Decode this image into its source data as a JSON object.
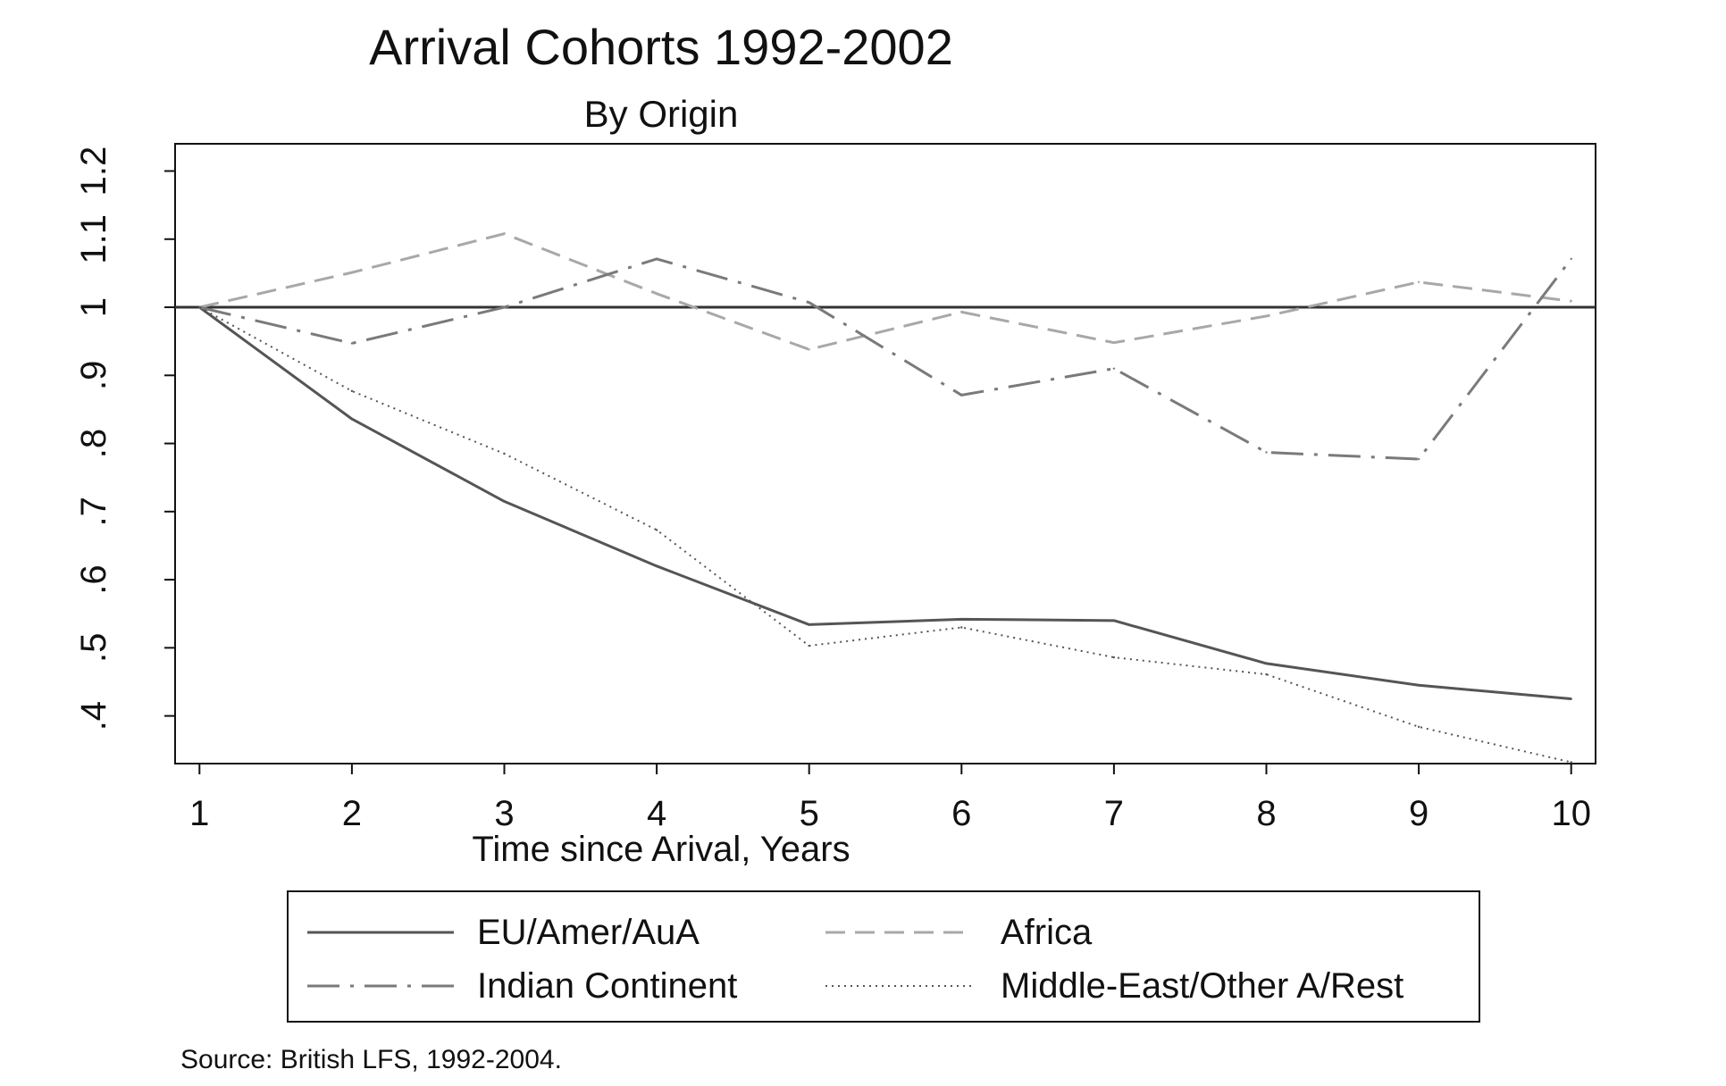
{
  "chart_data": {
    "type": "line",
    "title": "Arrival Cohorts 1992-2002",
    "subtitle": "By Origin",
    "xlabel": "Time since Arival, Years",
    "ylabel": "",
    "x": [
      1,
      2,
      3,
      4,
      5,
      6,
      7,
      8,
      9,
      10
    ],
    "x_ticks": [
      "1",
      "2",
      "3",
      "4",
      "5",
      "6",
      "7",
      "8",
      "9",
      "10"
    ],
    "y_ticks": [
      {
        "value": 0.4,
        "label": ".4"
      },
      {
        "value": 0.5,
        "label": ".5"
      },
      {
        "value": 0.6,
        "label": ".6"
      },
      {
        "value": 0.7,
        "label": ".7"
      },
      {
        "value": 0.8,
        "label": ".8"
      },
      {
        "value": 0.9,
        "label": ".9"
      },
      {
        "value": 1.0,
        "label": "1"
      },
      {
        "value": 1.1,
        "label": "1.1"
      },
      {
        "value": 1.2,
        "label": "1.2"
      }
    ],
    "xlim": [
      0.84,
      10.16
    ],
    "ylim": [
      0.33,
      1.24
    ],
    "reference_line": 1.0,
    "grid": false,
    "legend_position": "bottom",
    "series": [
      {
        "name": "EU/Amer/AuA",
        "values": [
          1.0,
          0.836,
          0.715,
          0.62,
          0.534,
          0.542,
          0.54,
          0.477,
          0.445,
          0.425
        ],
        "color": "#555555",
        "dash": "solid"
      },
      {
        "name": "Africa",
        "values": [
          1.0,
          1.051,
          1.108,
          1.02,
          0.938,
          0.993,
          0.948,
          0.987,
          1.037,
          1.009
        ],
        "color": "#a8a8a8",
        "dash": "dash"
      },
      {
        "name": "Indian Continent",
        "values": [
          1.0,
          0.947,
          1.0,
          1.071,
          1.007,
          0.871,
          0.91,
          0.787,
          0.777,
          1.071
        ],
        "color": "#7a7a7a",
        "dash": "dashdot"
      },
      {
        "name": "Middle-East/Other A/Rest",
        "values": [
          1.0,
          0.877,
          0.785,
          0.673,
          0.503,
          0.53,
          0.486,
          0.461,
          0.384,
          0.332
        ],
        "color": "#555555",
        "dash": "dot"
      }
    ],
    "note": "Source: British LFS, 1992-2004."
  }
}
